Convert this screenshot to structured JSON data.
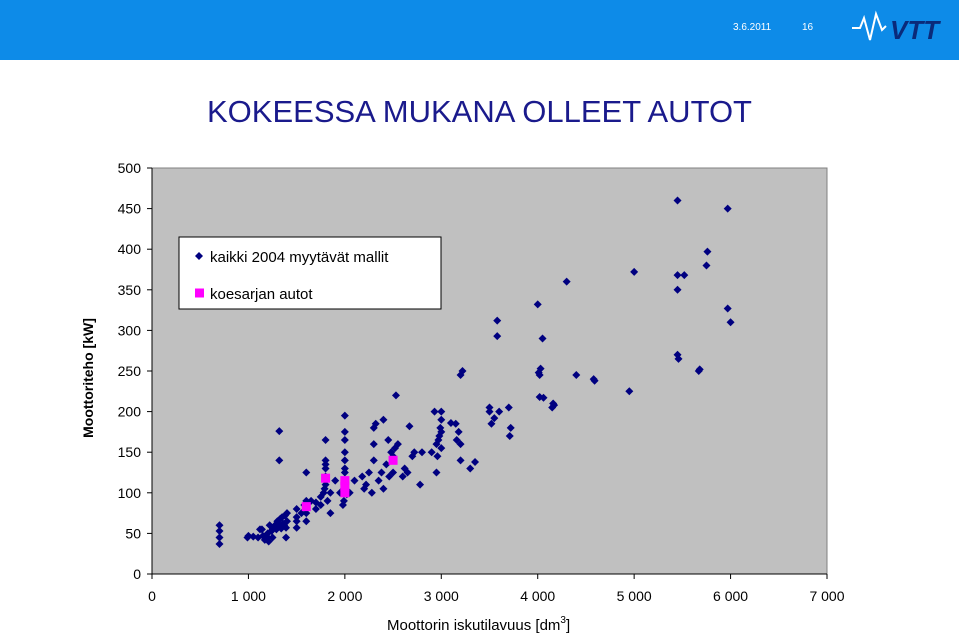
{
  "header": {
    "date": "3.6.2011",
    "page_number": "16",
    "logo_text": "VTT",
    "bar_color": "#0d8be8"
  },
  "slide": {
    "title": "KOKEESSA MUKANA OLLEET AUTOT"
  },
  "chart_data": {
    "type": "scatter",
    "xlabel": "Moottorin iskutilavuus [dm",
    "xlabel_sup": "3",
    "xlabel_end": "]",
    "ylabel": "Moottoriteho [kW]",
    "xlim": [
      0,
      7000
    ],
    "ylim": [
      0,
      500
    ],
    "x_ticks": [
      0,
      1000,
      2000,
      3000,
      4000,
      5000,
      6000,
      7000
    ],
    "x_tick_labels": [
      "0",
      "1 000",
      "2 000",
      "3 000",
      "4 000",
      "5 000",
      "6 000",
      "7 000"
    ],
    "y_ticks": [
      0,
      50,
      100,
      150,
      200,
      250,
      300,
      350,
      400,
      450,
      500
    ],
    "y_tick_labels": [
      "0",
      "50",
      "100",
      "150",
      "200",
      "250",
      "300",
      "350",
      "400",
      "450",
      "500"
    ],
    "plot_background": "#c0c0c0",
    "grid": false,
    "legend_position": "top-left",
    "series": [
      {
        "name": "kaikki 2004 myytävät mallit",
        "marker": "diamond",
        "color": "#000080",
        "points": [
          [
            700,
            60
          ],
          [
            700,
            53
          ],
          [
            700,
            45
          ],
          [
            700,
            37
          ],
          [
            990,
            45
          ],
          [
            1000,
            47
          ],
          [
            1050,
            46
          ],
          [
            1100,
            45
          ],
          [
            1120,
            55
          ],
          [
            1140,
            55
          ],
          [
            1150,
            47
          ],
          [
            1170,
            42
          ],
          [
            1200,
            45
          ],
          [
            1200,
            50
          ],
          [
            1210,
            40
          ],
          [
            1220,
            60
          ],
          [
            1240,
            53
          ],
          [
            1250,
            45
          ],
          [
            1250,
            55
          ],
          [
            1260,
            58
          ],
          [
            1280,
            60
          ],
          [
            1290,
            55
          ],
          [
            1300,
            57
          ],
          [
            1300,
            63
          ],
          [
            1300,
            65
          ],
          [
            1320,
            60
          ],
          [
            1330,
            68
          ],
          [
            1340,
            56
          ],
          [
            1350,
            70
          ],
          [
            1360,
            62
          ],
          [
            1370,
            60
          ],
          [
            1380,
            72
          ],
          [
            1390,
            57
          ],
          [
            1390,
            45
          ],
          [
            1400,
            65
          ],
          [
            1400,
            75
          ],
          [
            1320,
            176
          ],
          [
            1320,
            140
          ],
          [
            1500,
            57
          ],
          [
            1500,
            65
          ],
          [
            1500,
            70
          ],
          [
            1500,
            80
          ],
          [
            1550,
            75
          ],
          [
            1580,
            85
          ],
          [
            1600,
            65
          ],
          [
            1600,
            75
          ],
          [
            1600,
            80
          ],
          [
            1600,
            90
          ],
          [
            1600,
            125
          ],
          [
            1650,
            90
          ],
          [
            1700,
            80
          ],
          [
            1700,
            88
          ],
          [
            1750,
            85
          ],
          [
            1750,
            95
          ],
          [
            1780,
            100
          ],
          [
            1790,
            105
          ],
          [
            1800,
            110
          ],
          [
            1800,
            120
          ],
          [
            1800,
            130
          ],
          [
            1800,
            135
          ],
          [
            1800,
            140
          ],
          [
            1800,
            165
          ],
          [
            1820,
            90
          ],
          [
            1850,
            75
          ],
          [
            1850,
            100
          ],
          [
            1900,
            115
          ],
          [
            1950,
            100
          ],
          [
            1980,
            85
          ],
          [
            1990,
            90
          ],
          [
            1990,
            105
          ],
          [
            2000,
            115
          ],
          [
            2000,
            125
          ],
          [
            2000,
            130
          ],
          [
            2000,
            140
          ],
          [
            2000,
            150
          ],
          [
            2000,
            165
          ],
          [
            2000,
            175
          ],
          [
            2000,
            195
          ],
          [
            2020,
            98
          ],
          [
            2050,
            100
          ],
          [
            2100,
            115
          ],
          [
            2180,
            120
          ],
          [
            2200,
            105
          ],
          [
            2220,
            110
          ],
          [
            2250,
            125
          ],
          [
            2280,
            100
          ],
          [
            2300,
            140
          ],
          [
            2300,
            160
          ],
          [
            2300,
            180
          ],
          [
            2320,
            185
          ],
          [
            2350,
            115
          ],
          [
            2380,
            125
          ],
          [
            2400,
            190
          ],
          [
            2400,
            105
          ],
          [
            2430,
            135
          ],
          [
            2450,
            165
          ],
          [
            2460,
            120
          ],
          [
            2480,
            150
          ],
          [
            2500,
            125
          ],
          [
            2500,
            145
          ],
          [
            2520,
            155
          ],
          [
            2530,
            220
          ],
          [
            2550,
            160
          ],
          [
            2600,
            120
          ],
          [
            2620,
            130
          ],
          [
            2650,
            125
          ],
          [
            2670,
            182
          ],
          [
            2700,
            145
          ],
          [
            2720,
            150
          ],
          [
            2780,
            110
          ],
          [
            2800,
            150
          ],
          [
            2900,
            150
          ],
          [
            2930,
            200
          ],
          [
            2950,
            160
          ],
          [
            2950,
            125
          ],
          [
            2960,
            145
          ],
          [
            2970,
            165
          ],
          [
            2980,
            170
          ],
          [
            2990,
            180
          ],
          [
            3000,
            175
          ],
          [
            3000,
            155
          ],
          [
            3000,
            200
          ],
          [
            3000,
            190
          ],
          [
            3100,
            186
          ],
          [
            3150,
            185
          ],
          [
            3160,
            165
          ],
          [
            3180,
            175
          ],
          [
            3200,
            160
          ],
          [
            3200,
            140
          ],
          [
            3200,
            245
          ],
          [
            3220,
            250
          ],
          [
            3300,
            130
          ],
          [
            3350,
            138
          ],
          [
            3500,
            205
          ],
          [
            3500,
            200
          ],
          [
            3520,
            185
          ],
          [
            3550,
            192
          ],
          [
            3580,
            312
          ],
          [
            3580,
            293
          ],
          [
            3600,
            200
          ],
          [
            3700,
            205
          ],
          [
            3710,
            170
          ],
          [
            3720,
            180
          ],
          [
            4000,
            332
          ],
          [
            4010,
            248
          ],
          [
            4020,
            245
          ],
          [
            4030,
            253
          ],
          [
            4050,
            290
          ],
          [
            4020,
            218
          ],
          [
            4060,
            217
          ],
          [
            4150,
            205
          ],
          [
            4160,
            210
          ],
          [
            4170,
            208
          ],
          [
            4300,
            360
          ],
          [
            4400,
            245
          ],
          [
            4580,
            240
          ],
          [
            4590,
            238
          ],
          [
            4950,
            225
          ],
          [
            5000,
            372
          ],
          [
            5450,
            368
          ],
          [
            5450,
            460
          ],
          [
            5450,
            350
          ],
          [
            5450,
            270
          ],
          [
            5460,
            265
          ],
          [
            5520,
            368
          ],
          [
            5670,
            250
          ],
          [
            5680,
            252
          ],
          [
            5750,
            380
          ],
          [
            5760,
            397
          ],
          [
            5970,
            450
          ],
          [
            5970,
            327
          ],
          [
            6000,
            310
          ]
        ]
      },
      {
        "name": "koesarjan autot",
        "marker": "square",
        "color": "#ff00ff",
        "points": [
          [
            1600,
            83
          ],
          [
            1800,
            118
          ],
          [
            2000,
            115
          ],
          [
            2000,
            108
          ],
          [
            2000,
            100
          ],
          [
            2500,
            140
          ]
        ]
      }
    ]
  }
}
